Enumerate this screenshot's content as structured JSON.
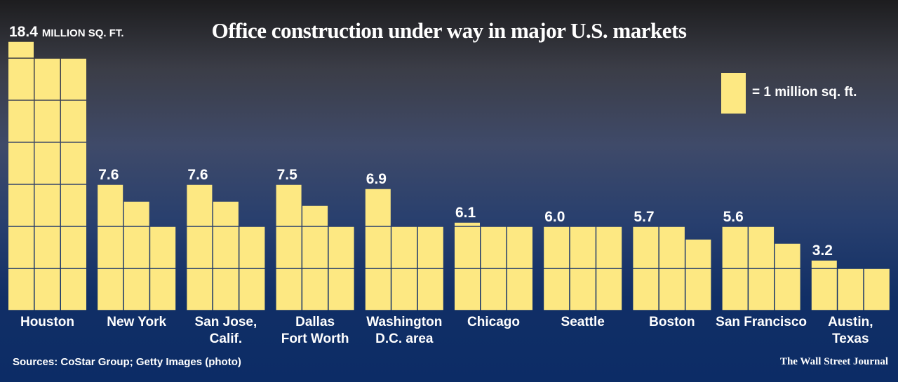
{
  "chart_data": {
    "type": "bar",
    "title": "Office construction under way in major U.S. markets",
    "unit_label": "MILLION SQ. FT.",
    "legend": "= 1 million sq. ft.",
    "categories": [
      [
        "Houston"
      ],
      [
        "New York"
      ],
      [
        "San Jose,",
        "Calif."
      ],
      [
        "Dallas",
        "Fort Worth"
      ],
      [
        "Washington",
        "D.C. area"
      ],
      [
        "Chicago"
      ],
      [
        "Seattle"
      ],
      [
        "Boston"
      ],
      [
        "San Francisco"
      ],
      [
        "Austin,",
        "Texas"
      ]
    ],
    "values": [
      18.4,
      7.6,
      7.6,
      7.5,
      6.9,
      6.1,
      6.0,
      5.7,
      5.6,
      3.2
    ],
    "value_labels": [
      "18.4",
      "7.6",
      "7.6",
      "7.5",
      "6.9",
      "6.1",
      "6.0",
      "5.7",
      "5.6",
      "3.2"
    ],
    "bar_color": "#fde882",
    "background_color": "#0c2c66"
  },
  "footer": {
    "source": "Sources: CoStar Group; Getty Images (photo)",
    "credit": "The Wall Street Journal"
  }
}
